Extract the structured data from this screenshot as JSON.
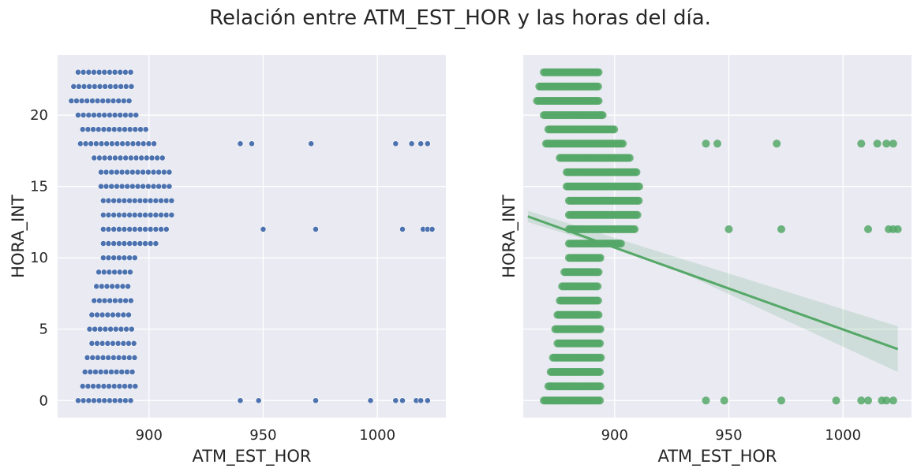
{
  "title": "Relación entre ATM_EST_HOR y las horas del día.",
  "colors": {
    "panel_bg": "#EAEAF2",
    "grid": "#FFFFFF",
    "blue": "#4C72B0",
    "green": "#55A868"
  },
  "chart_data": [
    {
      "type": "scatter",
      "xlabel": "ATM_EST_HOR",
      "ylabel": "HORA_INT",
      "xlim": [
        860,
        1030
      ],
      "ylim": [
        -1.2,
        24.2
      ],
      "xticks": [
        900,
        950,
        1000
      ],
      "yticks": [
        0,
        5,
        10,
        15,
        20
      ],
      "grid": true,
      "marker_color": "#4C72B0",
      "hour_ranges": [
        [
          0,
          869,
          894
        ],
        [
          1,
          871,
          894
        ],
        [
          2,
          872,
          894
        ],
        [
          3,
          873,
          894
        ],
        [
          4,
          875,
          894
        ],
        [
          5,
          874,
          894
        ],
        [
          6,
          875,
          893
        ],
        [
          7,
          876,
          893
        ],
        [
          8,
          877,
          893
        ],
        [
          9,
          878,
          893
        ],
        [
          10,
          880,
          894
        ],
        [
          11,
          880,
          903
        ],
        [
          12,
          880,
          909
        ],
        [
          13,
          880,
          910
        ],
        [
          14,
          880,
          911
        ],
        [
          15,
          879,
          911
        ],
        [
          16,
          879,
          910
        ],
        [
          17,
          876,
          907
        ],
        [
          18,
          870,
          904
        ],
        [
          19,
          871,
          900
        ],
        [
          20,
          869,
          895
        ],
        [
          21,
          866,
          893
        ],
        [
          22,
          867,
          893
        ],
        [
          23,
          869,
          893
        ]
      ],
      "outliers": [
        [
          940,
          0
        ],
        [
          948,
          0
        ],
        [
          973,
          0
        ],
        [
          997,
          0
        ],
        [
          1008,
          0
        ],
        [
          1011,
          0
        ],
        [
          1017,
          0
        ],
        [
          1019,
          0
        ],
        [
          1022,
          0
        ],
        [
          940,
          18
        ],
        [
          945,
          18
        ],
        [
          971,
          18
        ],
        [
          1008,
          18
        ],
        [
          1015,
          18
        ],
        [
          1019,
          18
        ],
        [
          1022,
          18
        ],
        [
          950,
          12
        ],
        [
          973,
          12
        ],
        [
          1011,
          12
        ],
        [
          1020,
          12
        ],
        [
          1022,
          12
        ],
        [
          1024,
          12
        ]
      ]
    },
    {
      "type": "scatter",
      "xlabel": "ATM_EST_HOR",
      "ylabel": "HORA_INT",
      "xlim": [
        860,
        1030
      ],
      "ylim": [
        -1.2,
        24.2
      ],
      "xticks": [
        900,
        950,
        1000
      ],
      "yticks": [
        0,
        5,
        10,
        15,
        20
      ],
      "grid": true,
      "marker_color": "#55A868",
      "regression": {
        "x": [
          862,
          1024
        ],
        "y": [
          12.9,
          3.6
        ],
        "ci_lower_end": [
          12.5,
          2.0
        ],
        "ci_upper_end": [
          13.3,
          5.2
        ]
      },
      "hour_ranges": [
        [
          0,
          869,
          894
        ],
        [
          1,
          871,
          894
        ],
        [
          2,
          872,
          894
        ],
        [
          3,
          873,
          894
        ],
        [
          4,
          875,
          894
        ],
        [
          5,
          874,
          894
        ],
        [
          6,
          875,
          893
        ],
        [
          7,
          876,
          893
        ],
        [
          8,
          877,
          893
        ],
        [
          9,
          878,
          893
        ],
        [
          10,
          880,
          894
        ],
        [
          11,
          880,
          903
        ],
        [
          12,
          880,
          909
        ],
        [
          13,
          880,
          910
        ],
        [
          14,
          880,
          911
        ],
        [
          15,
          879,
          911
        ],
        [
          16,
          879,
          910
        ],
        [
          17,
          876,
          907
        ],
        [
          18,
          870,
          904
        ],
        [
          19,
          871,
          900
        ],
        [
          20,
          869,
          895
        ],
        [
          21,
          866,
          893
        ],
        [
          22,
          867,
          893
        ],
        [
          23,
          869,
          893
        ]
      ],
      "outliers": [
        [
          940,
          0
        ],
        [
          948,
          0
        ],
        [
          973,
          0
        ],
        [
          997,
          0
        ],
        [
          1008,
          0
        ],
        [
          1011,
          0
        ],
        [
          1017,
          0
        ],
        [
          1019,
          0
        ],
        [
          1022,
          0
        ],
        [
          940,
          18
        ],
        [
          945,
          18
        ],
        [
          971,
          18
        ],
        [
          1008,
          18
        ],
        [
          1015,
          18
        ],
        [
          1019,
          18
        ],
        [
          1022,
          18
        ],
        [
          950,
          12
        ],
        [
          973,
          12
        ],
        [
          1011,
          12
        ],
        [
          1020,
          12
        ],
        [
          1022,
          12
        ],
        [
          1024,
          12
        ]
      ]
    }
  ]
}
